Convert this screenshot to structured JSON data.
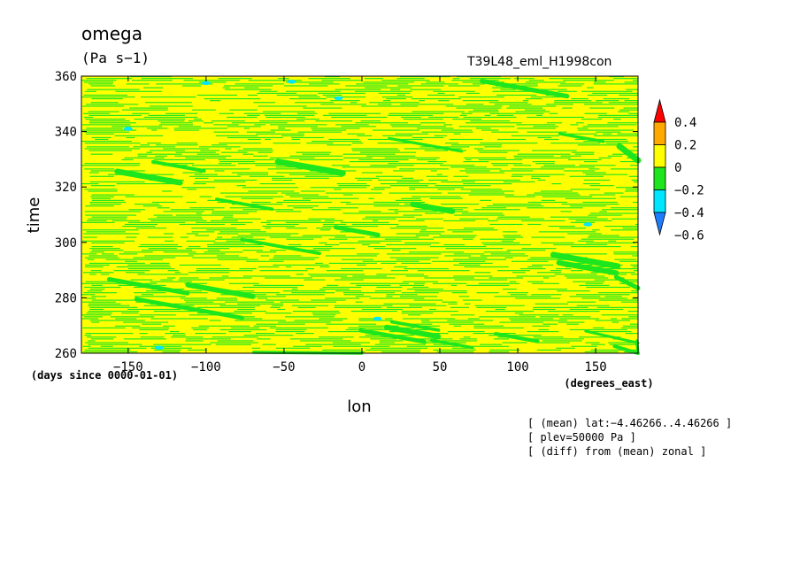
{
  "header": {
    "title": "omega",
    "units": "(Pa s−1)",
    "run_name": "T39L48_eml_H1998con"
  },
  "notes": [
    "[ (mean) lat:−4.46266..4.46266 ]",
    "[ plev=50000 Pa ]",
    "[ (diff) from (mean) zonal ]"
  ],
  "colors": {
    "c_m06": "#1e7dff",
    "c_m04": "#00e6ff",
    "c_m02": "#1ee61e",
    "c_0": "#ffff00",
    "c_02": "#ffa800",
    "c_04": "#ff0000",
    "frame": "#000000"
  },
  "chart_data": {
    "type": "heatmap",
    "title": "omega",
    "units": "(Pa s−1)",
    "xlabel": "lon",
    "xunits": "(degrees_east)",
    "ylabel": "time",
    "yunits": "(days since 0000-01-01)",
    "xlim": [
      -180,
      177.2
    ],
    "ylim": [
      260,
      360
    ],
    "xticks": [
      -150,
      -100,
      -50,
      0,
      50,
      100,
      150
    ],
    "yticks": [
      260,
      280,
      300,
      320,
      340,
      360
    ],
    "colorbar": {
      "levels": [
        -0.6,
        -0.4,
        -0.2,
        0,
        0.2,
        0.4
      ],
      "labels": [
        "−0.6",
        "−0.4",
        "−0.2",
        "0",
        "0.2",
        "0.4"
      ],
      "colors": [
        "#1e7dff",
        "#00e6ff",
        "#1ee61e",
        "#ffff00",
        "#ffa800",
        "#ff0000"
      ],
      "extend": "both"
    },
    "field_description": "Noisy near-zero omega anomaly, mostly yellow (0 to 0.2) with green (-0.2 to 0) streaks propagating eastward and downward in time; isolated cyan cells (-0.4 to -0.2).",
    "bands": [
      {
        "lon": -160,
        "time": 356
      },
      {
        "lon": 140,
        "time": 306
      },
      {
        "lon": -40,
        "time": 350
      }
    ]
  }
}
